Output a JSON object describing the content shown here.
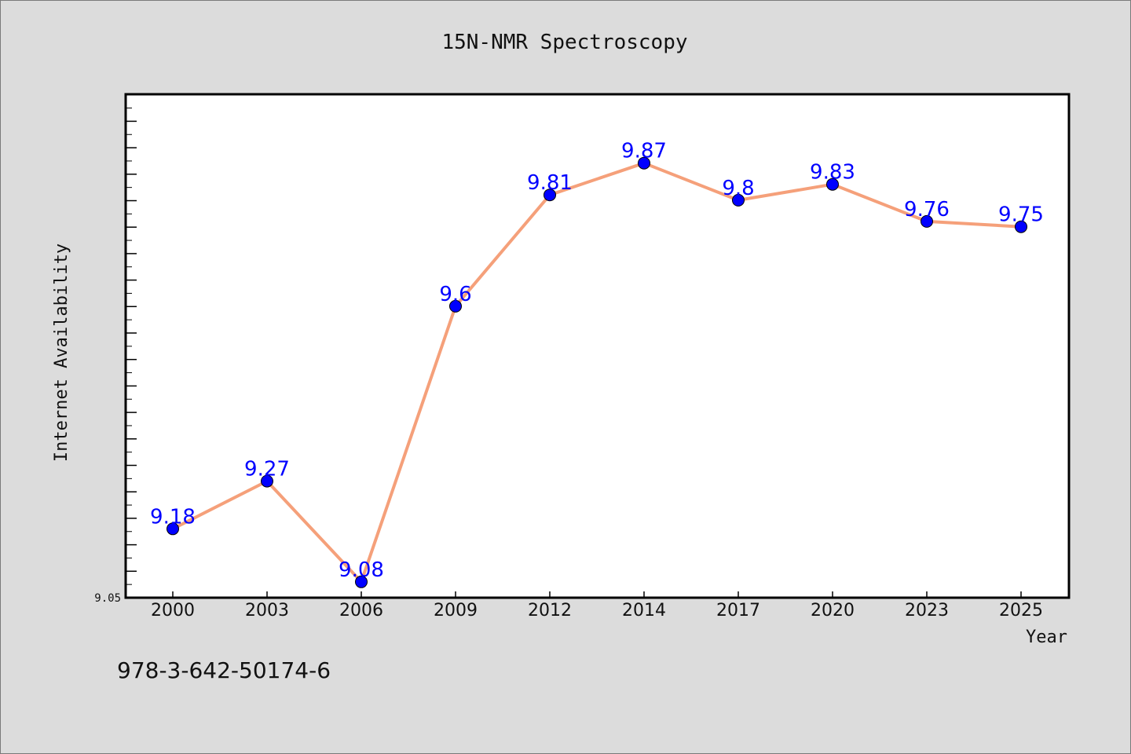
{
  "chart_data": {
    "type": "line",
    "title": "15N-NMR Spectroscopy",
    "xlabel": "Year",
    "ylabel": "Internet Availability",
    "categories": [
      "2000",
      "2003",
      "2006",
      "2009",
      "2012",
      "2014",
      "2017",
      "2020",
      "2023",
      "2025"
    ],
    "series": [
      {
        "values": [
          9.18,
          9.27,
          9.08,
          9.6,
          9.81,
          9.87,
          9.8,
          9.83,
          9.76,
          9.75
        ]
      }
    ],
    "data_labels": [
      "9.18",
      "9.27",
      "9.08",
      "9.6",
      "9.81",
      "9.87",
      "9.8",
      "9.83",
      "9.76",
      "9.75"
    ],
    "ylim": [
      9.05,
      10.0
    ],
    "y_tick_labels": [
      "9.05"
    ],
    "grid": false,
    "line_color": "#f5a07a",
    "marker_color": "#0000ff",
    "label_color": "#0000ff"
  },
  "footer": {
    "isbn": "978-3-642-50174-6"
  }
}
